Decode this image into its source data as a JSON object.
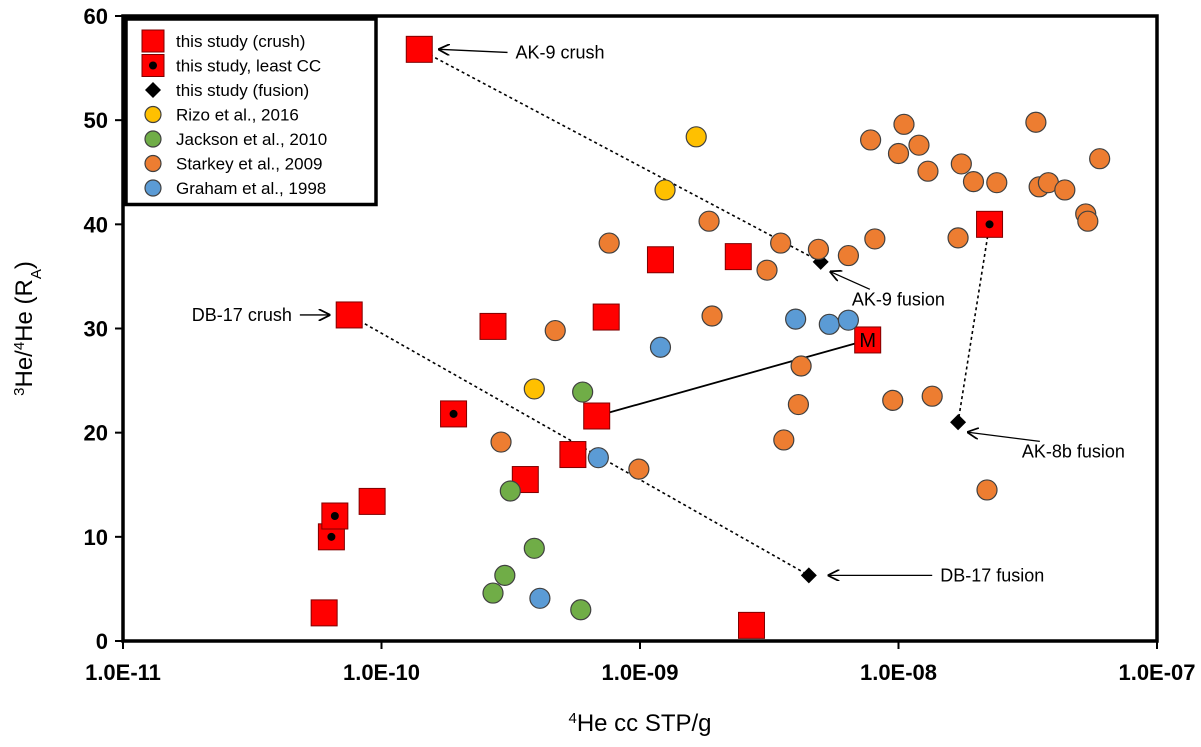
{
  "chart_data": {
    "type": "scatter",
    "x_scale": "log",
    "xlim": [
      1e-11,
      1e-07
    ],
    "ylim": [
      0,
      60
    ],
    "grid": false,
    "legend_position": "top-left",
    "x_ticks": [
      "1.0E-11",
      "1.0E-10",
      "1.0E-09",
      "1.0E-08",
      "1.0E-07"
    ],
    "y_ticks": [
      "0",
      "10",
      "20",
      "30",
      "40",
      "50",
      "60"
    ],
    "xlabel": {
      "sup": "4",
      "text": "He cc STP/g"
    },
    "ylabel": {
      "sup1": "3",
      "mid": "He/",
      "sup2": "4",
      "text": "He (R",
      "sub": "A",
      "end": ")"
    },
    "series": [
      {
        "name": "this study (crush)",
        "marker": "square",
        "color": "#ff0000",
        "inner_dot": false,
        "points": [
          [
            6e-11,
            2.7
          ],
          [
            7.5e-11,
            31.3
          ],
          [
            9.2e-11,
            13.4
          ],
          [
            1.4e-10,
            56.8
          ],
          [
            2.7e-10,
            30.2
          ],
          [
            3.6e-10,
            15.5
          ],
          [
            5.5e-10,
            17.9
          ],
          [
            6.8e-10,
            21.6
          ],
          [
            7.4e-10,
            31.1
          ],
          [
            1.2e-09,
            36.6
          ],
          [
            2.4e-09,
            36.9
          ],
          [
            2.7e-09,
            1.5
          ],
          [
            7.6e-09,
            28.9
          ]
        ]
      },
      {
        "name": "this study, least CC",
        "marker": "square",
        "color": "#ff0000",
        "inner_dot": true,
        "points": [
          [
            6.4e-11,
            10.0
          ],
          [
            6.6e-11,
            12.0
          ],
          [
            1.9e-10,
            21.8
          ],
          [
            2.25e-08,
            40.0
          ]
        ]
      },
      {
        "name": "this study (fusion)",
        "marker": "diamond",
        "color": "#000000",
        "points": [
          [
            5e-09,
            36.4
          ],
          [
            4.5e-09,
            6.3
          ],
          [
            1.7e-08,
            21.0
          ]
        ]
      },
      {
        "name": "Rizo et al., 2016",
        "marker": "circle",
        "color": "#ffc000",
        "points": [
          [
            3.9e-10,
            24.2
          ],
          [
            1.25e-09,
            43.3
          ],
          [
            1.65e-09,
            48.4
          ]
        ]
      },
      {
        "name": "Jackson et al., 2010",
        "marker": "circle",
        "color": "#70ad47",
        "points": [
          [
            2.7e-10,
            4.6
          ],
          [
            3e-10,
            6.3
          ],
          [
            3.15e-10,
            14.4
          ],
          [
            3.9e-10,
            8.9
          ],
          [
            5.9e-10,
            3.0
          ],
          [
            6e-10,
            23.9
          ]
        ]
      },
      {
        "name": "Starkey et al., 2009",
        "marker": "circle",
        "color": "#ed7d31",
        "points": [
          [
            2.9e-10,
            19.1
          ],
          [
            4.7e-10,
            29.8
          ],
          [
            7.6e-10,
            38.2
          ],
          [
            9.9e-10,
            16.5
          ],
          [
            1.85e-09,
            40.3
          ],
          [
            1.9e-09,
            31.2
          ],
          [
            3.1e-09,
            35.6
          ],
          [
            3.5e-09,
            38.2
          ],
          [
            3.6e-09,
            19.3
          ],
          [
            4.1e-09,
            22.7
          ],
          [
            4.2e-09,
            26.4
          ],
          [
            4.9e-09,
            37.6
          ],
          [
            6.4e-09,
            37.0
          ],
          [
            7.8e-09,
            48.1
          ],
          [
            8.1e-09,
            38.6
          ],
          [
            9.5e-09,
            23.1
          ],
          [
            1e-08,
            46.8
          ],
          [
            1.05e-08,
            49.6
          ],
          [
            1.2e-08,
            47.6
          ],
          [
            1.3e-08,
            45.1
          ],
          [
            1.35e-08,
            23.5
          ],
          [
            1.7e-08,
            38.7
          ],
          [
            1.75e-08,
            45.8
          ],
          [
            1.95e-08,
            44.1
          ],
          [
            2.2e-08,
            14.5
          ],
          [
            2.4e-08,
            44.0
          ],
          [
            3.4e-08,
            49.8
          ],
          [
            3.5e-08,
            43.6
          ],
          [
            3.8e-08,
            44.0
          ],
          [
            4.4e-08,
            43.3
          ],
          [
            5.3e-08,
            41.0
          ],
          [
            5.4e-08,
            40.3
          ],
          [
            6e-08,
            46.3
          ]
        ]
      },
      {
        "name": "Graham et al., 1998",
        "marker": "circle",
        "color": "#5b9bd5",
        "points": [
          [
            4.1e-10,
            4.1
          ],
          [
            6.9e-10,
            17.6
          ],
          [
            1.2e-09,
            28.2
          ],
          [
            4e-09,
            30.9
          ],
          [
            5.4e-09,
            30.4
          ],
          [
            6.4e-09,
            30.8
          ]
        ]
      }
    ],
    "point_labels": [
      {
        "text": "M",
        "x": 7.6e-09,
        "y": 28.9
      }
    ],
    "connectors": [
      {
        "style": "dotted",
        "from": [
          1.4e-10,
          56.8
        ],
        "to": [
          5e-09,
          36.4
        ]
      },
      {
        "style": "dotted",
        "from": [
          7.5e-11,
          31.3
        ],
        "to": [
          4.5e-09,
          6.3
        ]
      },
      {
        "style": "dotted",
        "from": [
          2.25e-08,
          40.0
        ],
        "to": [
          1.7e-08,
          21.0
        ]
      },
      {
        "style": "solid",
        "from": [
          6.8e-10,
          21.6
        ],
        "to": [
          7.6e-09,
          28.9
        ]
      }
    ],
    "annotations": [
      {
        "text": "AK-9 crush",
        "target": [
          1.4e-10,
          56.8
        ],
        "text_at": [
          3.3e-10,
          56.5
        ],
        "anchor": "start",
        "arrow_dir": "left"
      },
      {
        "text": "AK-9 fusion",
        "target": [
          5e-09,
          36.4
        ],
        "text_at": [
          6.6e-09,
          32.8
        ],
        "anchor": "start",
        "arrow_dir": "up-left"
      },
      {
        "text": "DB-17 crush",
        "target": [
          7.5e-11,
          31.3
        ],
        "text_at": [
          4.5e-11,
          31.3
        ],
        "anchor": "end",
        "arrow_dir": "right"
      },
      {
        "text": "AK-8b fusion",
        "target": [
          1.7e-08,
          21.0
        ],
        "text_at": [
          3e-08,
          18.2
        ],
        "anchor": "start",
        "arrow_dir": "up-left"
      },
      {
        "text": "DB-17 fusion",
        "target": [
          4.5e-09,
          6.3
        ],
        "text_at": [
          1.45e-08,
          6.3
        ],
        "anchor": "start",
        "arrow_dir": "left"
      }
    ]
  }
}
